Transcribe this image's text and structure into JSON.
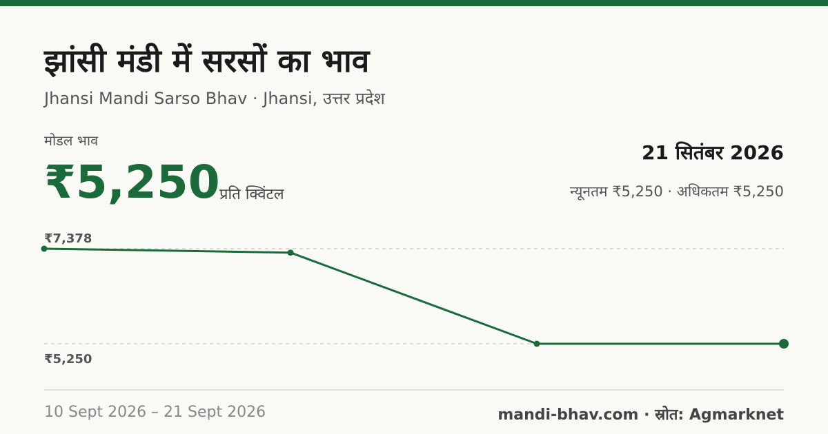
{
  "header": {
    "title": "झांसी मंडी में सरसों का भाव",
    "subtitle": "Jhansi Mandi Sarso Bhav · Jhansi, उत्तर प्रदेश"
  },
  "price": {
    "label": "मोडल भाव",
    "value": "₹5,250",
    "unit": "प्रति क्विंटल"
  },
  "date": "21 सितंबर 2026",
  "range_text": "न्यूनतम ₹5,250 · अधिकतम ₹5,250",
  "footer": {
    "date_range": "10 Sept 2026 – 21 Sept 2026",
    "source": "mandi-bhav.com · स्रोत: Agmarknet"
  },
  "colors": {
    "accent": "#1a6b39",
    "grid": "#bdbdb5",
    "background": "#f9f9f5"
  },
  "chart_data": {
    "type": "line",
    "title": "",
    "xlabel": "",
    "ylabel": "",
    "x": [
      "10 Sept 2026",
      "",
      "",
      "21 Sept 2026"
    ],
    "values": [
      7378,
      7290,
      5250,
      5250
    ],
    "tick_labels": [
      "₹7,378",
      "₹5,250"
    ],
    "tick_values": [
      7378,
      5250
    ],
    "ylim": [
      5250,
      7378
    ],
    "grid": true,
    "legend": "none"
  }
}
